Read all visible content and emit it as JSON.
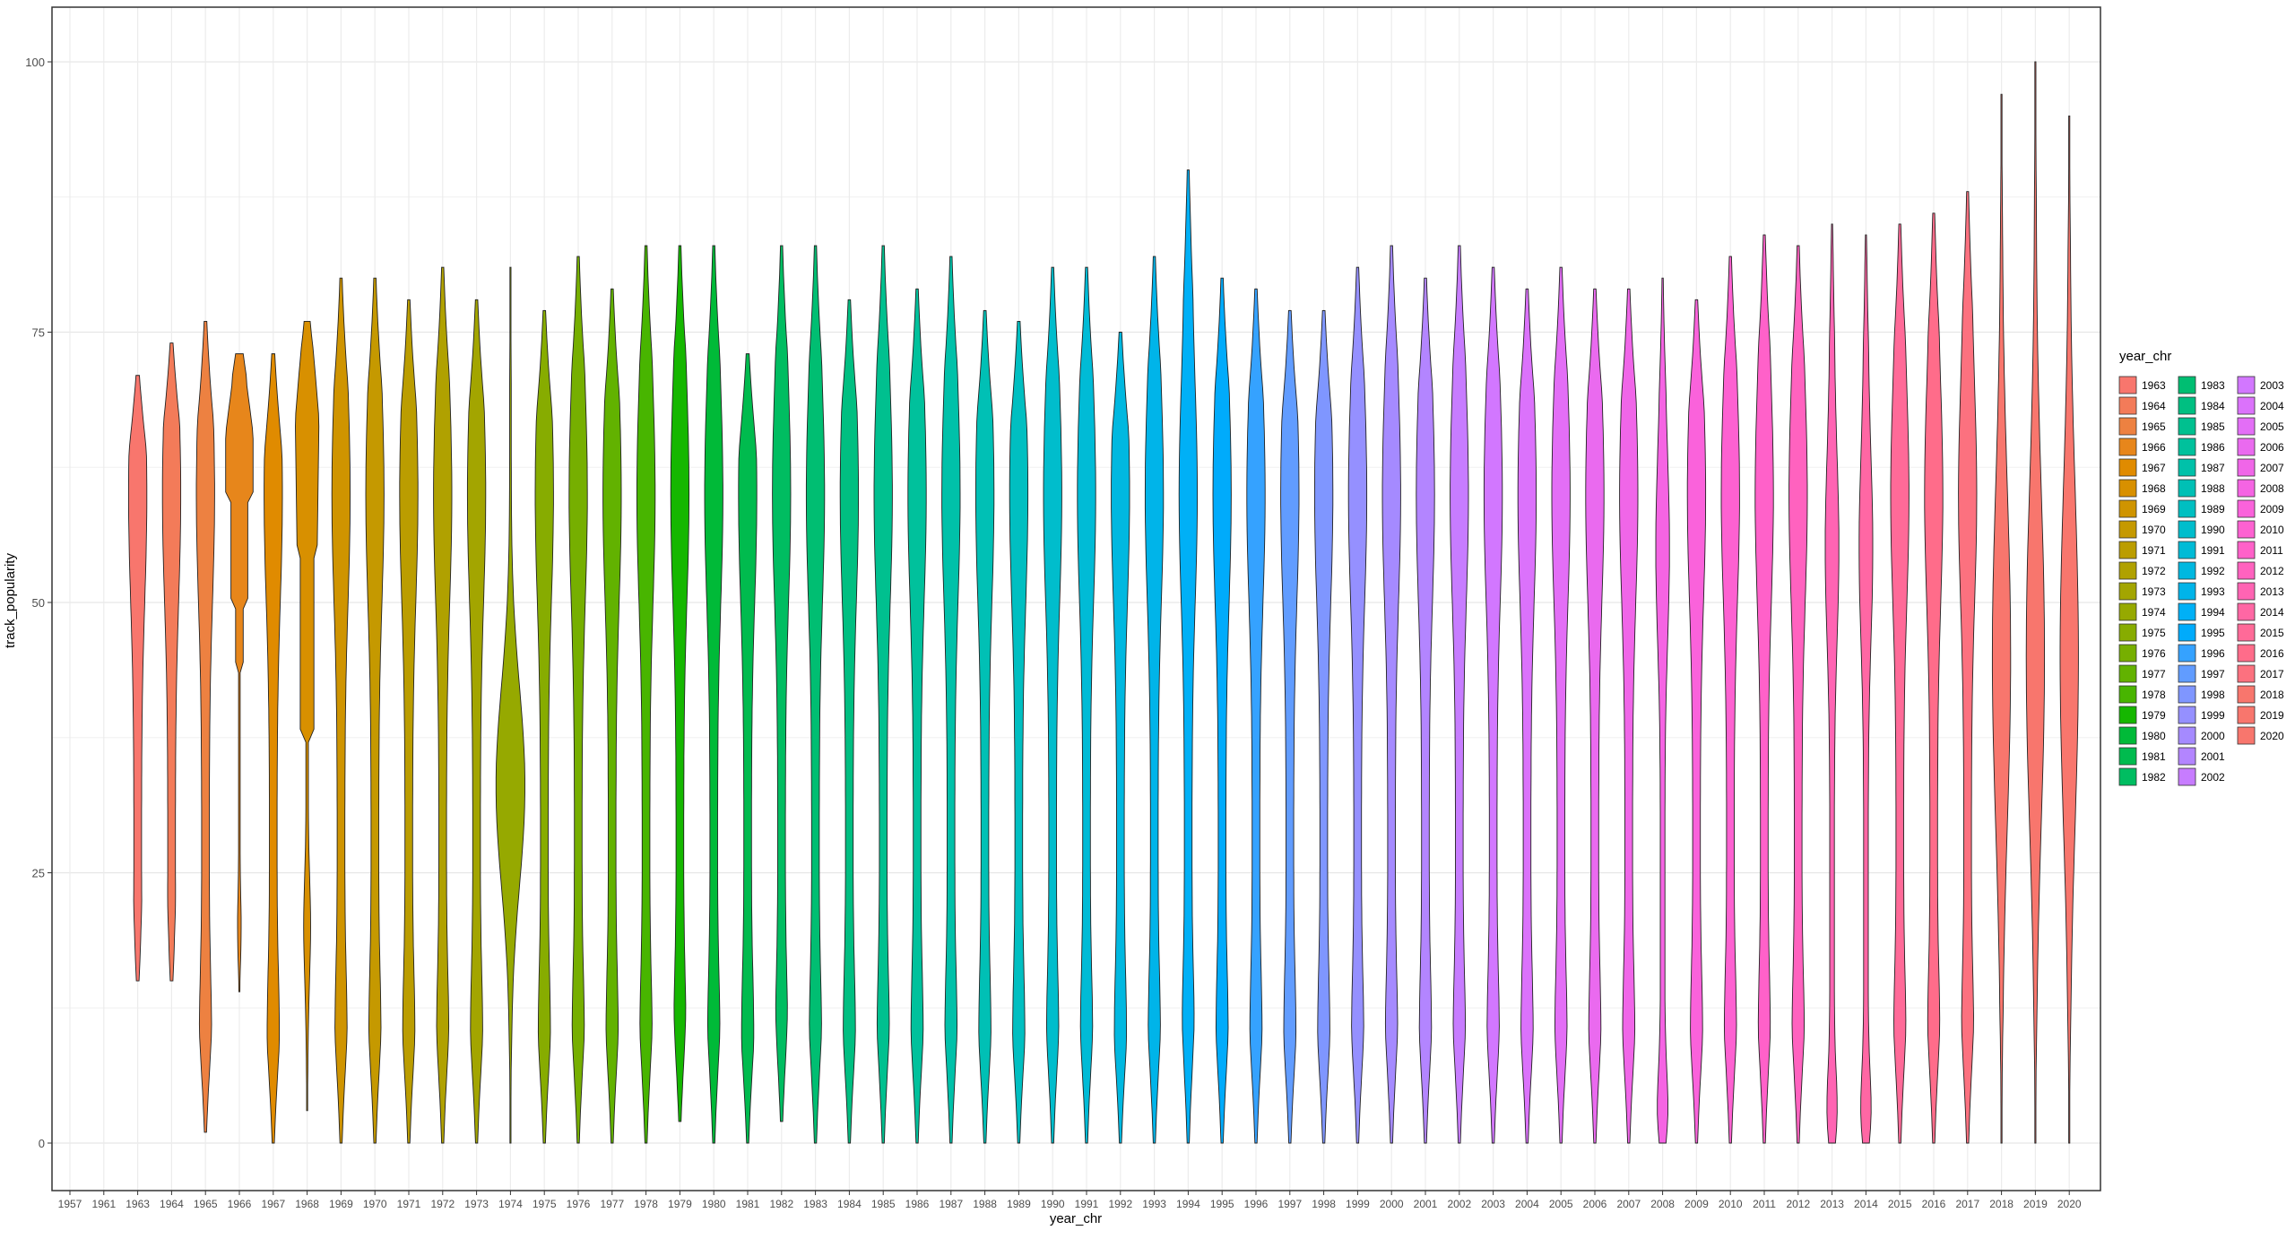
{
  "chart_data": {
    "type": "violin",
    "title": "",
    "xlabel": "year_chr",
    "ylabel": "track_popularity",
    "ylim": [
      -2,
      105
    ],
    "y_ticks": [
      0,
      25,
      50,
      75,
      100
    ],
    "grid": true,
    "legend_position": "right",
    "legend_title": "year_chr",
    "categories": [
      "1957",
      "1961",
      "1963",
      "1964",
      "1965",
      "1966",
      "1967",
      "1968",
      "1969",
      "1970",
      "1971",
      "1972",
      "1973",
      "1974",
      "1975",
      "1976",
      "1977",
      "1978",
      "1979",
      "1980",
      "1981",
      "1982",
      "1983",
      "1984",
      "1985",
      "1986",
      "1987",
      "1988",
      "1989",
      "1990",
      "1991",
      "1992",
      "1993",
      "1994",
      "1995",
      "1996",
      "1997",
      "1998",
      "1999",
      "2000",
      "2001",
      "2002",
      "2003",
      "2004",
      "2005",
      "2006",
      "2007",
      "2008",
      "2009",
      "2010",
      "2011",
      "2012",
      "2013",
      "2014",
      "2015",
      "2016",
      "2017",
      "2018",
      "2019",
      "2020"
    ],
    "legend_items": [
      "1963",
      "1964",
      "1965",
      "1966",
      "1967",
      "1968",
      "1969",
      "1970",
      "1971",
      "1972",
      "1973",
      "1974",
      "1975",
      "1976",
      "1977",
      "1978",
      "1979",
      "1980",
      "1981",
      "1982",
      "1983",
      "1984",
      "1985",
      "1986",
      "1987",
      "1988",
      "1989",
      "1990",
      "1991",
      "1992",
      "1993",
      "1994",
      "1995",
      "1996",
      "1997",
      "1998",
      "1999",
      "2000",
      "2001",
      "2002",
      "2003",
      "2004",
      "2005",
      "2006",
      "2007",
      "2008",
      "2009",
      "2010",
      "2011",
      "2012",
      "2013",
      "2014",
      "2015",
      "2016",
      "2017",
      "2018",
      "2019",
      "2020"
    ],
    "violins": [
      {
        "year": "1963",
        "min": 15,
        "max": 71,
        "color": "#F8766D"
      },
      {
        "year": "1964",
        "min": 15,
        "max": 74,
        "color": "#F37B59"
      },
      {
        "year": "1965",
        "min": 1,
        "max": 76,
        "color": "#ED8141"
      },
      {
        "year": "1966",
        "min": 14,
        "max": 73,
        "color": "#E7861B"
      },
      {
        "year": "1967",
        "min": 0,
        "max": 73,
        "color": "#E08B00"
      },
      {
        "year": "1968",
        "min": 3,
        "max": 76,
        "color": "#D89000"
      },
      {
        "year": "1969",
        "min": 0,
        "max": 80,
        "color": "#CF9400"
      },
      {
        "year": "1970",
        "min": 0,
        "max": 80,
        "color": "#C59900"
      },
      {
        "year": "1971",
        "min": 0,
        "max": 78,
        "color": "#BB9D00"
      },
      {
        "year": "1972",
        "min": 0,
        "max": 81,
        "color": "#B0A100"
      },
      {
        "year": "1973",
        "min": 0,
        "max": 78,
        "color": "#A3A500"
      },
      {
        "year": "1974",
        "min": 0,
        "max": 81,
        "color": "#96A900"
      },
      {
        "year": "1975",
        "min": 0,
        "max": 77,
        "color": "#87AC00"
      },
      {
        "year": "1976",
        "min": 0,
        "max": 82,
        "color": "#76AF00"
      },
      {
        "year": "1977",
        "min": 0,
        "max": 79,
        "color": "#62B200"
      },
      {
        "year": "1978",
        "min": 0,
        "max": 83,
        "color": "#48B500"
      },
      {
        "year": "1979",
        "min": 2,
        "max": 83,
        "color": "#15B700"
      },
      {
        "year": "1980",
        "min": 0,
        "max": 83,
        "color": "#00BA38"
      },
      {
        "year": "1981",
        "min": 0,
        "max": 73,
        "color": "#00BB4E"
      },
      {
        "year": "1982",
        "min": 2,
        "max": 83,
        "color": "#00BD61"
      },
      {
        "year": "1983",
        "min": 0,
        "max": 83,
        "color": "#00BE72"
      },
      {
        "year": "1984",
        "min": 0,
        "max": 78,
        "color": "#00BF81"
      },
      {
        "year": "1985",
        "min": 0,
        "max": 83,
        "color": "#00C08F"
      },
      {
        "year": "1986",
        "min": 0,
        "max": 79,
        "color": "#00C19C"
      },
      {
        "year": "1987",
        "min": 0,
        "max": 82,
        "color": "#00C1A9"
      },
      {
        "year": "1988",
        "min": 0,
        "max": 77,
        "color": "#00C0B5"
      },
      {
        "year": "1989",
        "min": 0,
        "max": 76,
        "color": "#00BFC1"
      },
      {
        "year": "1990",
        "min": 0,
        "max": 81,
        "color": "#00BDCC"
      },
      {
        "year": "1991",
        "min": 0,
        "max": 81,
        "color": "#00BBD6"
      },
      {
        "year": "1992",
        "min": 0,
        "max": 75,
        "color": "#00B8E0"
      },
      {
        "year": "1993",
        "min": 0,
        "max": 82,
        "color": "#00B4E9"
      },
      {
        "year": "1994",
        "min": 0,
        "max": 90,
        "color": "#00B0F6"
      },
      {
        "year": "1995",
        "min": 0,
        "max": 80,
        "color": "#00ABFB"
      },
      {
        "year": "1996",
        "min": 0,
        "max": 79,
        "color": "#35A2FF"
      },
      {
        "year": "1997",
        "min": 0,
        "max": 77,
        "color": "#619CFF"
      },
      {
        "year": "1998",
        "min": 0,
        "max": 77,
        "color": "#7F96FF"
      },
      {
        "year": "1999",
        "min": 0,
        "max": 81,
        "color": "#9590FF"
      },
      {
        "year": "2000",
        "min": 0,
        "max": 83,
        "color": "#A58AFF"
      },
      {
        "year": "2001",
        "min": 0,
        "max": 80,
        "color": "#B385FF"
      },
      {
        "year": "2002",
        "min": 0,
        "max": 83,
        "color": "#C77CFF"
      },
      {
        "year": "2003",
        "min": 0,
        "max": 81,
        "color": "#D277FF"
      },
      {
        "year": "2004",
        "min": 0,
        "max": 79,
        "color": "#DB72FB"
      },
      {
        "year": "2005",
        "min": 0,
        "max": 81,
        "color": "#E36EF6"
      },
      {
        "year": "2006",
        "min": 0,
        "max": 79,
        "color": "#EA6AEF"
      },
      {
        "year": "2007",
        "min": 0,
        "max": 79,
        "color": "#F066E8"
      },
      {
        "year": "2008",
        "min": 0,
        "max": 80,
        "color": "#F564E3"
      },
      {
        "year": "2009",
        "min": 0,
        "max": 78,
        "color": "#FA62DB"
      },
      {
        "year": "2010",
        "min": 0,
        "max": 82,
        "color": "#FD61D1"
      },
      {
        "year": "2011",
        "min": 0,
        "max": 84,
        "color": "#FF61C9"
      },
      {
        "year": "2012",
        "min": 0,
        "max": 83,
        "color": "#FF62BF"
      },
      {
        "year": "2013",
        "min": 0,
        "max": 85,
        "color": "#FF64B3"
      },
      {
        "year": "2014",
        "min": 0,
        "max": 84,
        "color": "#FF67A4"
      },
      {
        "year": "2015",
        "min": 0,
        "max": 85,
        "color": "#FF6A98"
      },
      {
        "year": "2016",
        "min": 0,
        "max": 86,
        "color": "#FF6C8A"
      },
      {
        "year": "2017",
        "min": 0,
        "max": 88,
        "color": "#FC717F"
      },
      {
        "year": "2018",
        "min": 0,
        "max": 97,
        "color": "#F8766D"
      },
      {
        "year": "2019",
        "min": 0,
        "max": 100,
        "color": "#F8766D"
      },
      {
        "year": "2020",
        "min": 0,
        "max": 95,
        "color": "#F8766D"
      }
    ]
  }
}
